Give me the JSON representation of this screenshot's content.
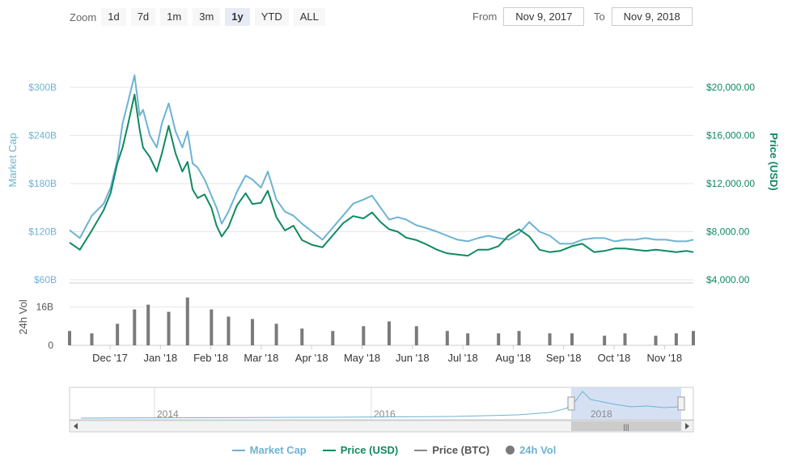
{
  "zoom": {
    "label": "Zoom",
    "buttons": [
      "1d",
      "7d",
      "1m",
      "3m",
      "1y",
      "YTD",
      "ALL"
    ],
    "active": "1y"
  },
  "range": {
    "from_label": "From",
    "from_value": "Nov 9, 2017",
    "to_label": "To",
    "to_value": "Nov 9, 2018"
  },
  "colors": {
    "market_cap": "#6db3d4",
    "price_usd": "#0f8a5f",
    "price_btc": "#888888",
    "volume": "#7a7a7a",
    "navigator_fill": "#cad9f0"
  },
  "chart_data": {
    "type": "line",
    "x_ticks": [
      "Dec '17",
      "Jan '18",
      "Feb '18",
      "Mar '18",
      "Apr '18",
      "May '18",
      "Jun '18",
      "Jul '18",
      "Aug '18",
      "Sep '18",
      "Oct '18",
      "Nov '18"
    ],
    "market_cap": {
      "label": "Market Cap",
      "ticks": [
        "$60B",
        "$120B",
        "$180B",
        "$240B",
        "$300B"
      ],
      "tick_values": [
        60,
        120,
        180,
        240,
        300
      ],
      "ylim": [
        60,
        300
      ],
      "dates": [
        "2017-11-09",
        "2017-11-15",
        "2017-11-22",
        "2017-11-29",
        "2017-12-03",
        "2017-12-07",
        "2017-12-10",
        "2017-12-13",
        "2017-12-17",
        "2017-12-20",
        "2017-12-22",
        "2017-12-26",
        "2017-12-30",
        "2018-01-02",
        "2018-01-06",
        "2018-01-10",
        "2018-01-14",
        "2018-01-17",
        "2018-01-20",
        "2018-01-23",
        "2018-01-27",
        "2018-01-31",
        "2018-02-03",
        "2018-02-06",
        "2018-02-10",
        "2018-02-15",
        "2018-02-20",
        "2018-02-24",
        "2018-03-01",
        "2018-03-05",
        "2018-03-10",
        "2018-03-15",
        "2018-03-20",
        "2018-03-25",
        "2018-03-31",
        "2018-04-06",
        "2018-04-12",
        "2018-04-18",
        "2018-04-24",
        "2018-04-30",
        "2018-05-05",
        "2018-05-10",
        "2018-05-15",
        "2018-05-20",
        "2018-05-25",
        "2018-05-31",
        "2018-06-05",
        "2018-06-12",
        "2018-06-18",
        "2018-06-24",
        "2018-06-30",
        "2018-07-06",
        "2018-07-12",
        "2018-07-18",
        "2018-07-24",
        "2018-07-30",
        "2018-08-05",
        "2018-08-11",
        "2018-08-17",
        "2018-08-23",
        "2018-08-30",
        "2018-09-05",
        "2018-09-12",
        "2018-09-18",
        "2018-09-24",
        "2018-09-30",
        "2018-10-06",
        "2018-10-12",
        "2018-10-18",
        "2018-10-24",
        "2018-10-30",
        "2018-11-05",
        "2018-11-09"
      ],
      "values": [
        122,
        112,
        140,
        155,
        175,
        210,
        255,
        280,
        315,
        265,
        272,
        240,
        225,
        255,
        280,
        245,
        225,
        245,
        205,
        200,
        185,
        165,
        150,
        130,
        145,
        170,
        190,
        185,
        175,
        195,
        160,
        145,
        140,
        130,
        120,
        110,
        125,
        140,
        155,
        160,
        165,
        150,
        135,
        138,
        135,
        128,
        125,
        120,
        115,
        110,
        108,
        112,
        115,
        112,
        110,
        118,
        132,
        120,
        115,
        105,
        105,
        110,
        112,
        112,
        108,
        110,
        110,
        112,
        110,
        110,
        108,
        108,
        110
      ]
    },
    "price_usd": {
      "label": "Price (USD)",
      "ticks": [
        "$4,000.00",
        "$8,000.00",
        "$12,000.00",
        "$16,000.00",
        "$20,000.00"
      ],
      "tick_values": [
        4000,
        8000,
        12000,
        16000,
        20000
      ],
      "ylim": [
        4000,
        20000
      ],
      "dates": [
        "2017-11-09",
        "2017-11-15",
        "2017-11-22",
        "2017-11-29",
        "2017-12-03",
        "2017-12-07",
        "2017-12-10",
        "2017-12-13",
        "2017-12-17",
        "2017-12-20",
        "2017-12-22",
        "2017-12-26",
        "2017-12-30",
        "2018-01-02",
        "2018-01-06",
        "2018-01-10",
        "2018-01-14",
        "2018-01-17",
        "2018-01-20",
        "2018-01-23",
        "2018-01-27",
        "2018-01-31",
        "2018-02-03",
        "2018-02-06",
        "2018-02-10",
        "2018-02-15",
        "2018-02-20",
        "2018-02-24",
        "2018-03-01",
        "2018-03-05",
        "2018-03-10",
        "2018-03-15",
        "2018-03-20",
        "2018-03-25",
        "2018-03-31",
        "2018-04-06",
        "2018-04-12",
        "2018-04-18",
        "2018-04-24",
        "2018-04-30",
        "2018-05-05",
        "2018-05-10",
        "2018-05-15",
        "2018-05-20",
        "2018-05-25",
        "2018-05-31",
        "2018-06-05",
        "2018-06-12",
        "2018-06-18",
        "2018-06-24",
        "2018-06-30",
        "2018-07-06",
        "2018-07-12",
        "2018-07-18",
        "2018-07-24",
        "2018-07-30",
        "2018-08-05",
        "2018-08-11",
        "2018-08-17",
        "2018-08-23",
        "2018-08-30",
        "2018-09-05",
        "2018-09-12",
        "2018-09-18",
        "2018-09-24",
        "2018-09-30",
        "2018-10-06",
        "2018-10-12",
        "2018-10-18",
        "2018-10-24",
        "2018-10-30",
        "2018-11-05",
        "2018-11-09"
      ],
      "values": [
        7100,
        6500,
        8100,
        9800,
        11200,
        13700,
        15000,
        16800,
        19400,
        16500,
        15000,
        14200,
        13000,
        14500,
        16800,
        14500,
        13000,
        13800,
        11500,
        10800,
        11100,
        10000,
        8500,
        7600,
        8400,
        10200,
        11200,
        10300,
        10400,
        11400,
        9200,
        8100,
        8500,
        7300,
        6900,
        6700,
        7700,
        8700,
        9300,
        9100,
        9600,
        8800,
        8200,
        8000,
        7500,
        7300,
        7000,
        6500,
        6200,
        6100,
        6000,
        6500,
        6500,
        6800,
        7700,
        8200,
        7600,
        6500,
        6300,
        6400,
        6800,
        7000,
        6300,
        6400,
        6600,
        6600,
        6500,
        6400,
        6500,
        6400,
        6300,
        6400,
        6300
      ]
    },
    "volume": {
      "label": "24h Vol",
      "ticks": [
        "0",
        "16B"
      ],
      "tick_values": [
        0,
        16
      ],
      "ylim": [
        0,
        24
      ],
      "dates": [
        "2017-11-09",
        "2017-11-22",
        "2017-12-07",
        "2017-12-17",
        "2017-12-25",
        "2018-01-06",
        "2018-01-17",
        "2018-01-31",
        "2018-02-10",
        "2018-02-24",
        "2018-03-10",
        "2018-03-25",
        "2018-04-12",
        "2018-04-30",
        "2018-05-15",
        "2018-05-31",
        "2018-06-18",
        "2018-06-30",
        "2018-07-18",
        "2018-07-30",
        "2018-08-17",
        "2018-08-30",
        "2018-09-18",
        "2018-09-30",
        "2018-10-18",
        "2018-10-30",
        "2018-11-09"
      ],
      "values": [
        6,
        5,
        9,
        15,
        17,
        14,
        20,
        15,
        12,
        11,
        9,
        7,
        6,
        8,
        10,
        8,
        6,
        5,
        5,
        6,
        5,
        5,
        4,
        5,
        4,
        5,
        6
      ]
    },
    "legend": [
      "Market Cap",
      "Price (USD)",
      "Price (BTC)",
      "24h Vol"
    ],
    "navigator": {
      "ticks": [
        "2014",
        "2016",
        "2018"
      ],
      "tick_years": [
        2014,
        2016,
        2018
      ]
    }
  }
}
